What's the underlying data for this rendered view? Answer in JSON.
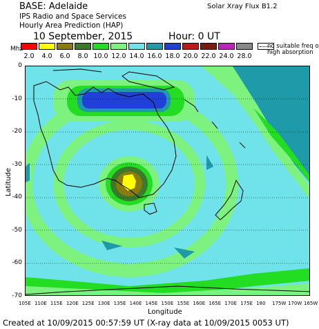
{
  "header": {
    "base": "BASE: Adelaide",
    "org": "IPS Radio and Space Services",
    "product": "Hourly Area Prediction (HAP)",
    "flux": "Solar Xray Flux B1.2",
    "date": "10 September, 2015",
    "hour": "Hour:  0 UT"
  },
  "legend": {
    "unit": "Mhz",
    "items": [
      {
        "label": "2.0",
        "color": "#ff0000"
      },
      {
        "label": "4.0",
        "color": "#ffff00"
      },
      {
        "label": "6.0",
        "color": "#8b7a10"
      },
      {
        "label": "8.0",
        "color": "#3a7a28"
      },
      {
        "label": "10.0",
        "color": "#22dd22"
      },
      {
        "label": "12.0",
        "color": "#7ef27e"
      },
      {
        "label": "14.0",
        "color": "#6fe3e9"
      },
      {
        "label": "16.0",
        "color": "#1e9aa8"
      },
      {
        "label": "18.0",
        "color": "#2040d8"
      },
      {
        "label": "20.0",
        "color": "#c01818"
      },
      {
        "label": "22.0",
        "color": "#7a1a10"
      },
      {
        "label": "24.0",
        "color": "#c020c0"
      },
      {
        "label": "28.0",
        "color": "#888888"
      }
    ],
    "no_freq": "no suitable freq or high absorption"
  },
  "axes": {
    "ylabel": "Latitude",
    "xlabel": "Longitude",
    "yticks": [
      "0",
      "-10",
      "-20",
      "-30",
      "-40",
      "-50",
      "-60",
      "-70"
    ],
    "xticks": [
      "105E",
      "110E",
      "115E",
      "120E",
      "125E",
      "130E",
      "135E",
      "140E",
      "145E",
      "150E",
      "155E",
      "160E",
      "165E",
      "170E",
      "175E",
      "180",
      "175W",
      "170W",
      "165W"
    ],
    "lat_range": [
      -70,
      0
    ],
    "lon_range": [
      "105E",
      "165W"
    ]
  },
  "footer": {
    "text": "Created at 10/09/2015 00:57:59 UT (X-ray data at 10/09/2015 0053 UT)"
  }
}
